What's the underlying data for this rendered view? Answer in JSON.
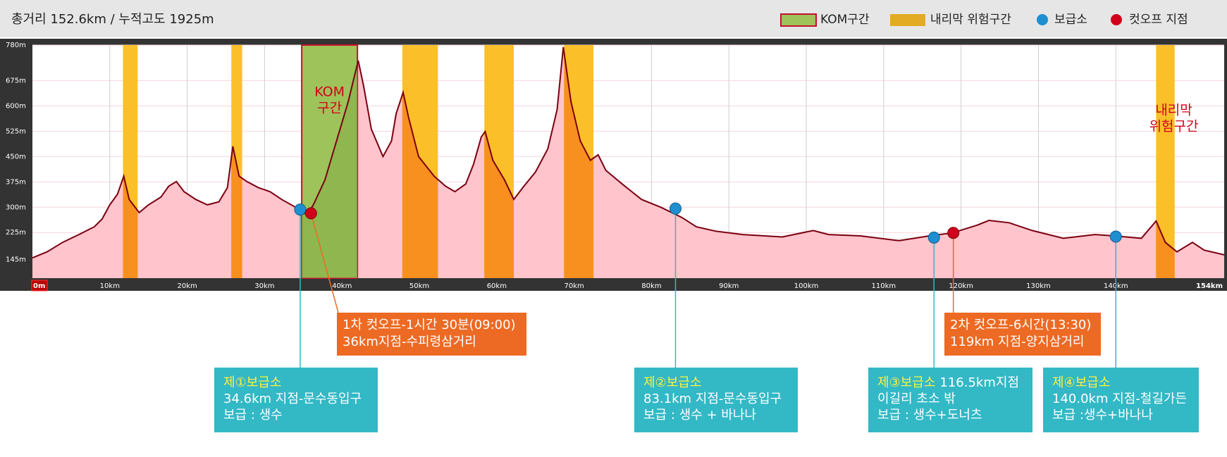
{
  "chart_data": {
    "type": "elevation",
    "header": "총거리 152.6km / 누적고도 1925m",
    "xlim": [
      0,
      154
    ],
    "ylim": [
      90,
      780
    ],
    "xticks": [
      {
        "value": 0,
        "label": "0m"
      },
      {
        "value": 10,
        "label": "10km"
      },
      {
        "value": 20,
        "label": "20km"
      },
      {
        "value": 30,
        "label": "30km"
      },
      {
        "value": 40,
        "label": "40km"
      },
      {
        "value": 50,
        "label": "50km"
      },
      {
        "value": 60,
        "label": "60km"
      },
      {
        "value": 70,
        "label": "70km"
      },
      {
        "value": 80,
        "label": "80km"
      },
      {
        "value": 90,
        "label": "90km"
      },
      {
        "value": 100,
        "label": "100km"
      },
      {
        "value": 110,
        "label": "110km"
      },
      {
        "value": 120,
        "label": "120km"
      },
      {
        "value": 130,
        "label": "130km"
      },
      {
        "value": 140,
        "label": "140km"
      },
      {
        "value": 154,
        "label": "154km"
      }
    ],
    "yticks": [
      {
        "value": 145,
        "label": "145m"
      },
      {
        "value": 225,
        "label": "225m"
      },
      {
        "value": 300,
        "label": "300m"
      },
      {
        "value": 375,
        "label": "375m"
      },
      {
        "value": 450,
        "label": "450m"
      },
      {
        "value": 525,
        "label": "525m"
      },
      {
        "value": 600,
        "label": "600m"
      },
      {
        "value": 675,
        "label": "675m"
      },
      {
        "value": 780,
        "label": "780m"
      }
    ],
    "grid": true,
    "profile": {
      "color": "#7a0010",
      "fill": "#ffc4cc",
      "x": [
        0,
        1.9,
        3.9,
        6,
        8,
        9,
        10,
        11,
        11.8,
        12.5,
        13.8,
        15,
        16.6,
        17.6,
        18.6,
        19.6,
        21.1,
        22.6,
        24.1,
        25.2,
        25.9,
        26.7,
        27.7,
        29.2,
        30.7,
        32.2,
        34,
        35.5,
        36.3,
        37.8,
        39.3,
        40.8,
        42.1,
        42.8,
        43.8,
        45.3,
        46.4,
        47,
        47.9,
        48.6,
        49.9,
        51.9,
        53.4,
        54.6,
        56,
        57,
        58,
        58.5,
        59.5,
        61,
        62.2,
        63.5,
        65,
        66.6,
        67.8,
        68.6,
        69.6,
        70.8,
        72.1,
        73.1,
        74.1,
        76.2,
        78.7,
        81.2,
        83.9,
        85.8,
        88.3,
        91.8,
        96.9,
        100.9,
        102.9,
        107,
        112,
        115.9,
        118.9,
        122.1,
        123.6,
        126.2,
        129.2,
        133.2,
        137.3,
        139.8,
        143.3,
        145.2,
        146.4,
        147.9,
        149.9,
        151.4,
        154
      ],
      "values": [
        150,
        168,
        196,
        219,
        242,
        265,
        307,
        339,
        392,
        323,
        284,
        307,
        330,
        362,
        376,
        346,
        323,
        307,
        316,
        358,
        480,
        392,
        376,
        358,
        346,
        323,
        300,
        277,
        307,
        381,
        496,
        612,
        734,
        658,
        531,
        450,
        496,
        577,
        640,
        566,
        450,
        392,
        362,
        346,
        369,
        427,
        508,
        524,
        439,
        381,
        323,
        362,
        404,
        473,
        589,
        774,
        612,
        496,
        439,
        455,
        409,
        369,
        323,
        300,
        270,
        242,
        229,
        219,
        212,
        231,
        219,
        215,
        201,
        215,
        224,
        247,
        261,
        254,
        231,
        208,
        219,
        215,
        208,
        259,
        196,
        168,
        196,
        173,
        159
      ]
    },
    "kom": {
      "label": "KOM구간",
      "color": "#9dc35a",
      "border": "#c8102e",
      "start": 34.8,
      "end": 42.0,
      "chart_label": [
        "KOM",
        "구간"
      ]
    },
    "downhill": {
      "label": "내리막 위험구간",
      "color": "#fbbf2a",
      "under_color": "#f7901e",
      "zones": [
        [
          11.7,
          13.6
        ],
        [
          25.7,
          27.1
        ],
        [
          47.8,
          52.4
        ],
        [
          58.4,
          62.2
        ],
        [
          68.7,
          72.5
        ],
        [
          145.2,
          147.6
        ]
      ],
      "chart_label": [
        "내리막",
        "위험구간"
      ]
    },
    "aid_stations": {
      "label": "보급소",
      "color": "#1e8fd0",
      "box_color": "#33b8c6",
      "title_color": "#fff23a",
      "points": [
        {
          "x": 34.6,
          "y": 293,
          "title": "제①보급소",
          "lines": [
            "34.6km 지점-문수동입구",
            "보급 : 생수"
          ]
        },
        {
          "x": 83.1,
          "y": 296,
          "title": "제②보급소",
          "lines": [
            "83.1km 지점-문수동입구",
            "보급 : 생수 + 바나나"
          ]
        },
        {
          "x": 116.5,
          "y": 210,
          "title": "제③보급소",
          "title_rest": "116.5km지점",
          "lines": [
            "이길리 초소 밖",
            "보급 : 생수+도너츠"
          ]
        },
        {
          "x": 140.0,
          "y": 213,
          "title": "제④보급소",
          "lines": [
            "140.0km 지점-철길가든",
            "보급 :생수+바나나"
          ]
        }
      ]
    },
    "cutoffs": {
      "label": "컷오프 지점",
      "color": "#d0021b",
      "box_color": "#ec6a24",
      "points": [
        {
          "x": 36,
          "y": 282,
          "lines": [
            "1차 컷오프-1시간 30분(09:00)",
            "36km지점-수피령삼거리"
          ]
        },
        {
          "x": 119,
          "y": 224,
          "lines": [
            "2차 컷오프-6시간(13:30)",
            "119km 지점-양지삼거리"
          ]
        }
      ]
    }
  }
}
